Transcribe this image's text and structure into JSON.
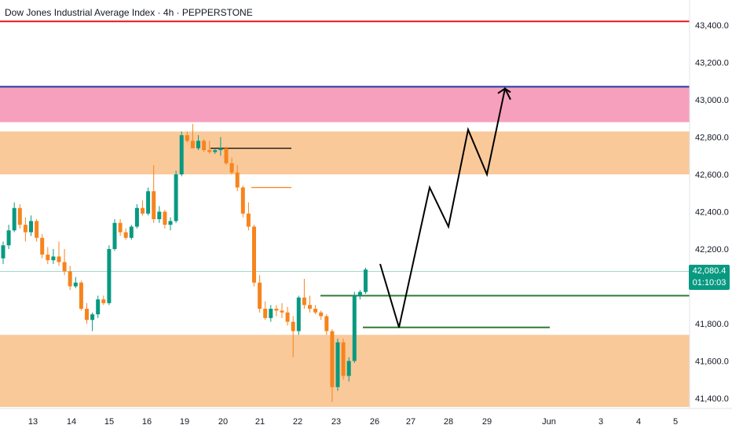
{
  "header": {
    "title": "Dow Jones Industrial Average Index · 4h · PEPPERSTONE"
  },
  "price_label": {
    "price": "42,080.4",
    "countdown": "01:10:03",
    "color": "#089981"
  },
  "colors": {
    "up": "#089981",
    "down": "#f7841d",
    "resistance_line": "#e8151b",
    "blue_line": "#1e3aa8",
    "pink_zone": "#f48fb1",
    "orange_zone": "#f9bf88",
    "green_line": "#2e7d32",
    "projection": "#000000"
  },
  "chart_data": {
    "type": "candlestick",
    "title": "Dow Jones Industrial Average Index · 4h · PEPPERSTONE",
    "y_axis": {
      "position": "right",
      "ticks": [
        "43,400.0",
        "43,200.0",
        "43,000.0",
        "42,800.0",
        "42,600.0",
        "42,400.0",
        "42,200.0",
        "41,800.0",
        "41,600.0",
        "41,400.0"
      ],
      "tick_values": [
        43400,
        43200,
        43000,
        42800,
        42600,
        42400,
        42200,
        41800,
        41600,
        41400
      ],
      "range": [
        41340,
        43480
      ]
    },
    "x_axis": {
      "ticks": [
        "13",
        "14",
        "15",
        "16",
        "19",
        "20",
        "21",
        "22",
        "23",
        "26",
        "27",
        "28",
        "29",
        "Jun",
        "3",
        "4",
        "5"
      ]
    },
    "current_price": 42080.4,
    "candles": [
      [
        42150,
        42240,
        42120,
        42220
      ],
      [
        42220,
        42330,
        42200,
        42300
      ],
      [
        42300,
        42450,
        42290,
        42420
      ],
      [
        42420,
        42440,
        42310,
        42330
      ],
      [
        42330,
        42370,
        42240,
        42290
      ],
      [
        42290,
        42380,
        42270,
        42350
      ],
      [
        42350,
        42360,
        42240,
        42260
      ],
      [
        42260,
        42280,
        42150,
        42170
      ],
      [
        42170,
        42210,
        42120,
        42140
      ],
      [
        42140,
        42200,
        42120,
        42160
      ],
      [
        42160,
        42240,
        42110,
        42130
      ],
      [
        42130,
        42200,
        42060,
        42080
      ],
      [
        42080,
        42110,
        41980,
        42000
      ],
      [
        42000,
        42050,
        41990,
        42020
      ],
      [
        42020,
        42030,
        41870,
        41880
      ],
      [
        41880,
        41910,
        41800,
        41820
      ],
      [
        41820,
        41860,
        41760,
        41850
      ],
      [
        41850,
        41950,
        41830,
        41930
      ],
      [
        41930,
        41950,
        41900,
        41910
      ],
      [
        41910,
        42220,
        41900,
        42200
      ],
      [
        42200,
        42360,
        42190,
        42340
      ],
      [
        42340,
        42360,
        42270,
        42290
      ],
      [
        42290,
        42310,
        42250,
        42260
      ],
      [
        42260,
        42330,
        42250,
        42320
      ],
      [
        42320,
        42440,
        42310,
        42420
      ],
      [
        42420,
        42460,
        42380,
        42390
      ],
      [
        42390,
        42530,
        42380,
        42510
      ],
      [
        42510,
        42650,
        42340,
        42360
      ],
      [
        42360,
        42430,
        42340,
        42400
      ],
      [
        42400,
        42410,
        42310,
        42330
      ],
      [
        42330,
        42370,
        42300,
        42350
      ],
      [
        42350,
        42620,
        42340,
        42600
      ],
      [
        42600,
        42830,
        42590,
        42810
      ],
      [
        42810,
        42830,
        42770,
        42780
      ],
      [
        42780,
        42870,
        42750,
        42740
      ],
      [
        42740,
        42810,
        42730,
        42780
      ],
      [
        42780,
        42790,
        42720,
        42730
      ],
      [
        42730,
        42780,
        42710,
        42720
      ],
      [
        42720,
        42740,
        42710,
        42730
      ],
      [
        42730,
        42800,
        42700,
        42740
      ],
      [
        42740,
        42750,
        42650,
        42660
      ],
      [
        42660,
        42690,
        42600,
        42610
      ],
      [
        42610,
        42650,
        42510,
        42530
      ],
      [
        42530,
        42540,
        42370,
        42390
      ],
      [
        42390,
        42450,
        42300,
        42320
      ],
      [
        42320,
        42330,
        42000,
        42020
      ],
      [
        42020,
        42060,
        41860,
        41880
      ],
      [
        41880,
        41920,
        41820,
        41830
      ],
      [
        41830,
        41900,
        41810,
        41880
      ],
      [
        41880,
        41900,
        41840,
        41870
      ],
      [
        41870,
        41910,
        41830,
        41860
      ],
      [
        41860,
        41890,
        41790,
        41810
      ],
      [
        41810,
        41840,
        41620,
        41760
      ],
      [
        41760,
        41950,
        41740,
        41940
      ],
      [
        41940,
        42040,
        41880,
        41900
      ],
      [
        41900,
        41950,
        41860,
        41880
      ],
      [
        41880,
        41900,
        41850,
        41860
      ],
      [
        41860,
        41870,
        41820,
        41840
      ],
      [
        41840,
        41850,
        41740,
        41760
      ],
      [
        41760,
        41770,
        41380,
        41460
      ],
      [
        41460,
        41720,
        41440,
        41700
      ],
      [
        41700,
        41720,
        41500,
        41520
      ],
      [
        41520,
        41620,
        41490,
        41600
      ],
      [
        41600,
        41970,
        41590,
        41950
      ],
      [
        41950,
        41980,
        41930,
        41970
      ],
      [
        41970,
        42100,
        41960,
        42090
      ]
    ],
    "zones": [
      {
        "name": "pink zone",
        "from": 42880,
        "to": 43070
      },
      {
        "name": "upper orange zone",
        "from": 42600,
        "to": 42830
      },
      {
        "name": "lower orange zone",
        "from": 41340,
        "to": 41740
      }
    ],
    "horizontal_lines": [
      {
        "name": "red line",
        "price": 43420
      },
      {
        "name": "blue line",
        "price": 43070
      },
      {
        "name": "green line upper",
        "price": 41950
      },
      {
        "name": "green line lower",
        "price": 41780
      },
      {
        "name": "black segment",
        "price": 42740
      },
      {
        "name": "orange segment",
        "price": 42530
      }
    ],
    "projection_path": [
      [
        42120
      ],
      [
        41780
      ],
      [
        42530
      ],
      [
        42320
      ],
      [
        42840
      ],
      [
        42600
      ],
      [
        43060
      ],
      [
        43040
      ]
    ],
    "grid": false,
    "legend": "none"
  }
}
